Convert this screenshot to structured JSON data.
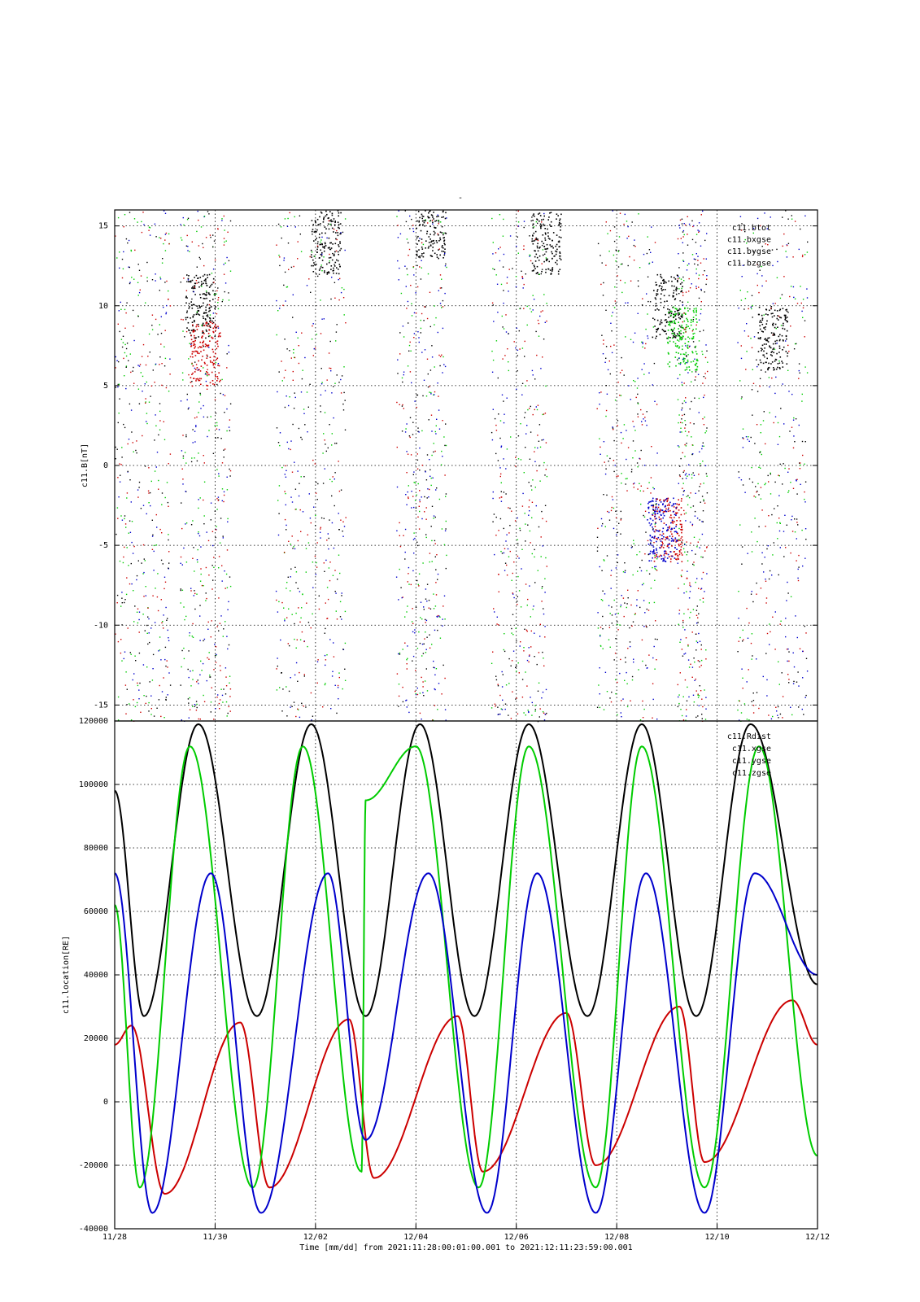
{
  "chart_data": [
    {
      "type": "scatter",
      "title": "-",
      "ylabel": "c11.B[nT]",
      "ylim": [
        -16,
        16
      ],
      "yticks": [
        -15,
        -10,
        -5,
        0,
        5,
        10,
        15
      ],
      "xlim": [
        "2021-11-28",
        "2021-12-12"
      ],
      "grid": true,
      "legend_position": "top-right",
      "series": [
        {
          "name": "c11.btot",
          "color": "#000000",
          "clusters": [
            {
              "x": [
                "11/29 12:00",
                "11/29 18:00",
                "11/30 00:00"
              ],
              "y": [
                11,
                10,
                9.5
              ],
              "note_free": true
            },
            {
              "x": [
                "12/02 00:00",
                "12/02 06:00"
              ],
              "y": [
                14,
                13
              ]
            },
            {
              "x": [
                "12/04 06:00",
                "12/04 12:00"
              ],
              "y": [
                15,
                14
              ]
            },
            {
              "x": [
                "12/06 12:00",
                "12/06 18:00"
              ],
              "y": [
                14,
                13
              ]
            },
            {
              "x": [
                "12/08 18:00",
                "12/09 00:00"
              ],
              "y": [
                11,
                10
              ]
            },
            {
              "x": [
                "12/11 00:00",
                "12/11 06:00"
              ],
              "y": [
                9,
                8
              ]
            }
          ]
        },
        {
          "name": "c11.bxgse",
          "color": "#cc0000"
        },
        {
          "name": "c11.bygse",
          "color": "#00cc00"
        },
        {
          "name": "c11.bzgse",
          "color": "#0000cc"
        }
      ]
    },
    {
      "type": "line",
      "ylabel": "c11.location[RE]",
      "xlabel": "Time [mm/dd]  from 2021:11:28:00:01:00.001  to  2021:12:11:23:59:00.001",
      "ylim": [
        -40000,
        120000
      ],
      "yticks": [
        -40000,
        -20000,
        0,
        20000,
        40000,
        60000,
        80000,
        100000,
        120000
      ],
      "xticks": [
        "11/28",
        "11/30",
        "12/02",
        "12/04",
        "12/06",
        "12/08",
        "12/10",
        "12/12"
      ],
      "xlim": [
        "2021-11-28",
        "2021-12-12"
      ],
      "grid": true,
      "legend_position": "top-right",
      "series": [
        {
          "name": "c11.Rdist",
          "color": "#000000",
          "x": [
            "11/28 00:00",
            "11/28 14:00",
            "11/29 16:00",
            "11/30 20:00",
            "12/01 22:00",
            "12/03 00:00",
            "12/04 02:00",
            "12/05 04:00",
            "12/06 06:00",
            "12/07 10:00",
            "12/08 12:00",
            "12/09 14:00",
            "12/10 16:00",
            "12/11 23:59"
          ],
          "y": [
            98000,
            27000,
            119000,
            27000,
            119000,
            27000,
            119000,
            27000,
            119000,
            27000,
            119000,
            27000,
            119000,
            37000
          ]
        },
        {
          "name": "c11.xgse",
          "color": "#cc0000",
          "x": [
            "11/28 00:00",
            "11/28 08:00",
            "11/29 00:00",
            "11/30 12:00",
            "12/01 02:00",
            "12/02 16:00",
            "12/03 04:00",
            "12/04 20:00",
            "12/05 08:00",
            "12/07 00:00",
            "12/07 14:00",
            "12/09 06:00",
            "12/09 18:00",
            "12/11 12:00",
            "12/11 23:59"
          ],
          "y": [
            18000,
            24000,
            -29000,
            25000,
            -27000,
            26000,
            -24000,
            27000,
            -22000,
            28000,
            -20000,
            30000,
            -19000,
            32000,
            18000
          ]
        },
        {
          "name": "c11.ygse",
          "color": "#00cc00",
          "x": [
            "11/28 00:00",
            "11/28 12:00",
            "11/29 12:00",
            "11/30 18:00",
            "12/01 18:00",
            "12/02 22:00",
            "12/03 00:00",
            "12/04 00:00",
            "12/05 06:00",
            "12/06 06:00",
            "12/07 14:00",
            "12/08 12:00",
            "12/09 18:00",
            "12/10 20:00",
            "12/11 23:59"
          ],
          "y": [
            62000,
            -27000,
            112000,
            -27000,
            112000,
            -22000,
            95000,
            112000,
            -27000,
            112000,
            -27000,
            112000,
            -27000,
            112000,
            -17000
          ]
        },
        {
          "name": "c11.zgse",
          "color": "#0000cc",
          "x": [
            "11/28 00:00",
            "11/28 18:00",
            "11/29 22:00",
            "11/30 22:00",
            "12/02 06:00",
            "12/03 00:00",
            "12/04 06:00",
            "12/05 10:00",
            "12/06 10:00",
            "12/07 14:00",
            "12/08 14:00",
            "12/09 18:00",
            "12/10 18:00",
            "12/11 23:59"
          ],
          "y": [
            72000,
            -35000,
            72000,
            -35000,
            72000,
            -12000,
            72000,
            -35000,
            72000,
            -35000,
            72000,
            -35000,
            72000,
            40000
          ]
        }
      ]
    }
  ],
  "colors": {
    "black": "#000000",
    "red": "#cc0000",
    "green": "#00cc00",
    "blue": "#0000cc"
  }
}
